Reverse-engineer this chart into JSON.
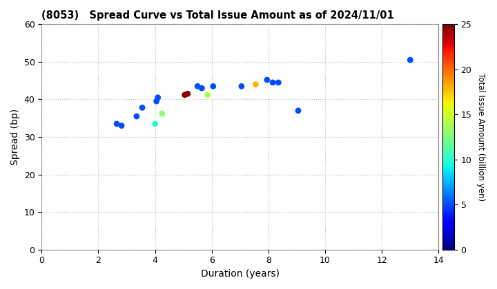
{
  "title": "(8053)   Spread Curve vs Total Issue Amount as of 2024/11/01",
  "xlabel": "Duration (years)",
  "ylabel": "Spread (bp)",
  "colorbar_label": "Total Issue Amount (billion yen)",
  "xlim": [
    0,
    14
  ],
  "ylim": [
    0,
    60
  ],
  "xticks": [
    0,
    2,
    4,
    6,
    8,
    10,
    12,
    14
  ],
  "yticks": [
    0,
    10,
    20,
    30,
    40,
    50,
    60
  ],
  "colorbar_min": 0,
  "colorbar_max": 25,
  "colorbar_ticks": [
    0,
    5,
    10,
    15,
    20,
    25
  ],
  "points": [
    {
      "duration": 2.65,
      "spread": 33.5,
      "amount": 5
    },
    {
      "duration": 2.82,
      "spread": 33.0,
      "amount": 5
    },
    {
      "duration": 3.35,
      "spread": 35.5,
      "amount": 5
    },
    {
      "duration": 3.55,
      "spread": 37.8,
      "amount": 5
    },
    {
      "duration": 4.0,
      "spread": 33.5,
      "amount": 10
    },
    {
      "duration": 4.05,
      "spread": 39.5,
      "amount": 5
    },
    {
      "duration": 4.1,
      "spread": 40.5,
      "amount": 5
    },
    {
      "duration": 4.25,
      "spread": 36.2,
      "amount": 13
    },
    {
      "duration": 5.05,
      "spread": 41.2,
      "amount": 25
    },
    {
      "duration": 5.15,
      "spread": 41.5,
      "amount": 25
    },
    {
      "duration": 5.5,
      "spread": 43.5,
      "amount": 5
    },
    {
      "duration": 5.65,
      "spread": 43.0,
      "amount": 5
    },
    {
      "duration": 5.85,
      "spread": 41.2,
      "amount": 14
    },
    {
      "duration": 6.05,
      "spread": 43.5,
      "amount": 5
    },
    {
      "duration": 7.05,
      "spread": 43.5,
      "amount": 5
    },
    {
      "duration": 7.55,
      "spread": 44.0,
      "amount": 18
    },
    {
      "duration": 7.95,
      "spread": 45.2,
      "amount": 5
    },
    {
      "duration": 8.15,
      "spread": 44.5,
      "amount": 5
    },
    {
      "duration": 8.35,
      "spread": 44.5,
      "amount": 5
    },
    {
      "duration": 9.05,
      "spread": 37.0,
      "amount": 5
    },
    {
      "duration": 13.0,
      "spread": 50.5,
      "amount": 5
    }
  ],
  "background_color": "#ffffff",
  "grid_color": "#bbbbbb",
  "marker_size": 40,
  "colormap": "jet",
  "figsize": [
    7.2,
    4.2
  ],
  "dpi": 100
}
